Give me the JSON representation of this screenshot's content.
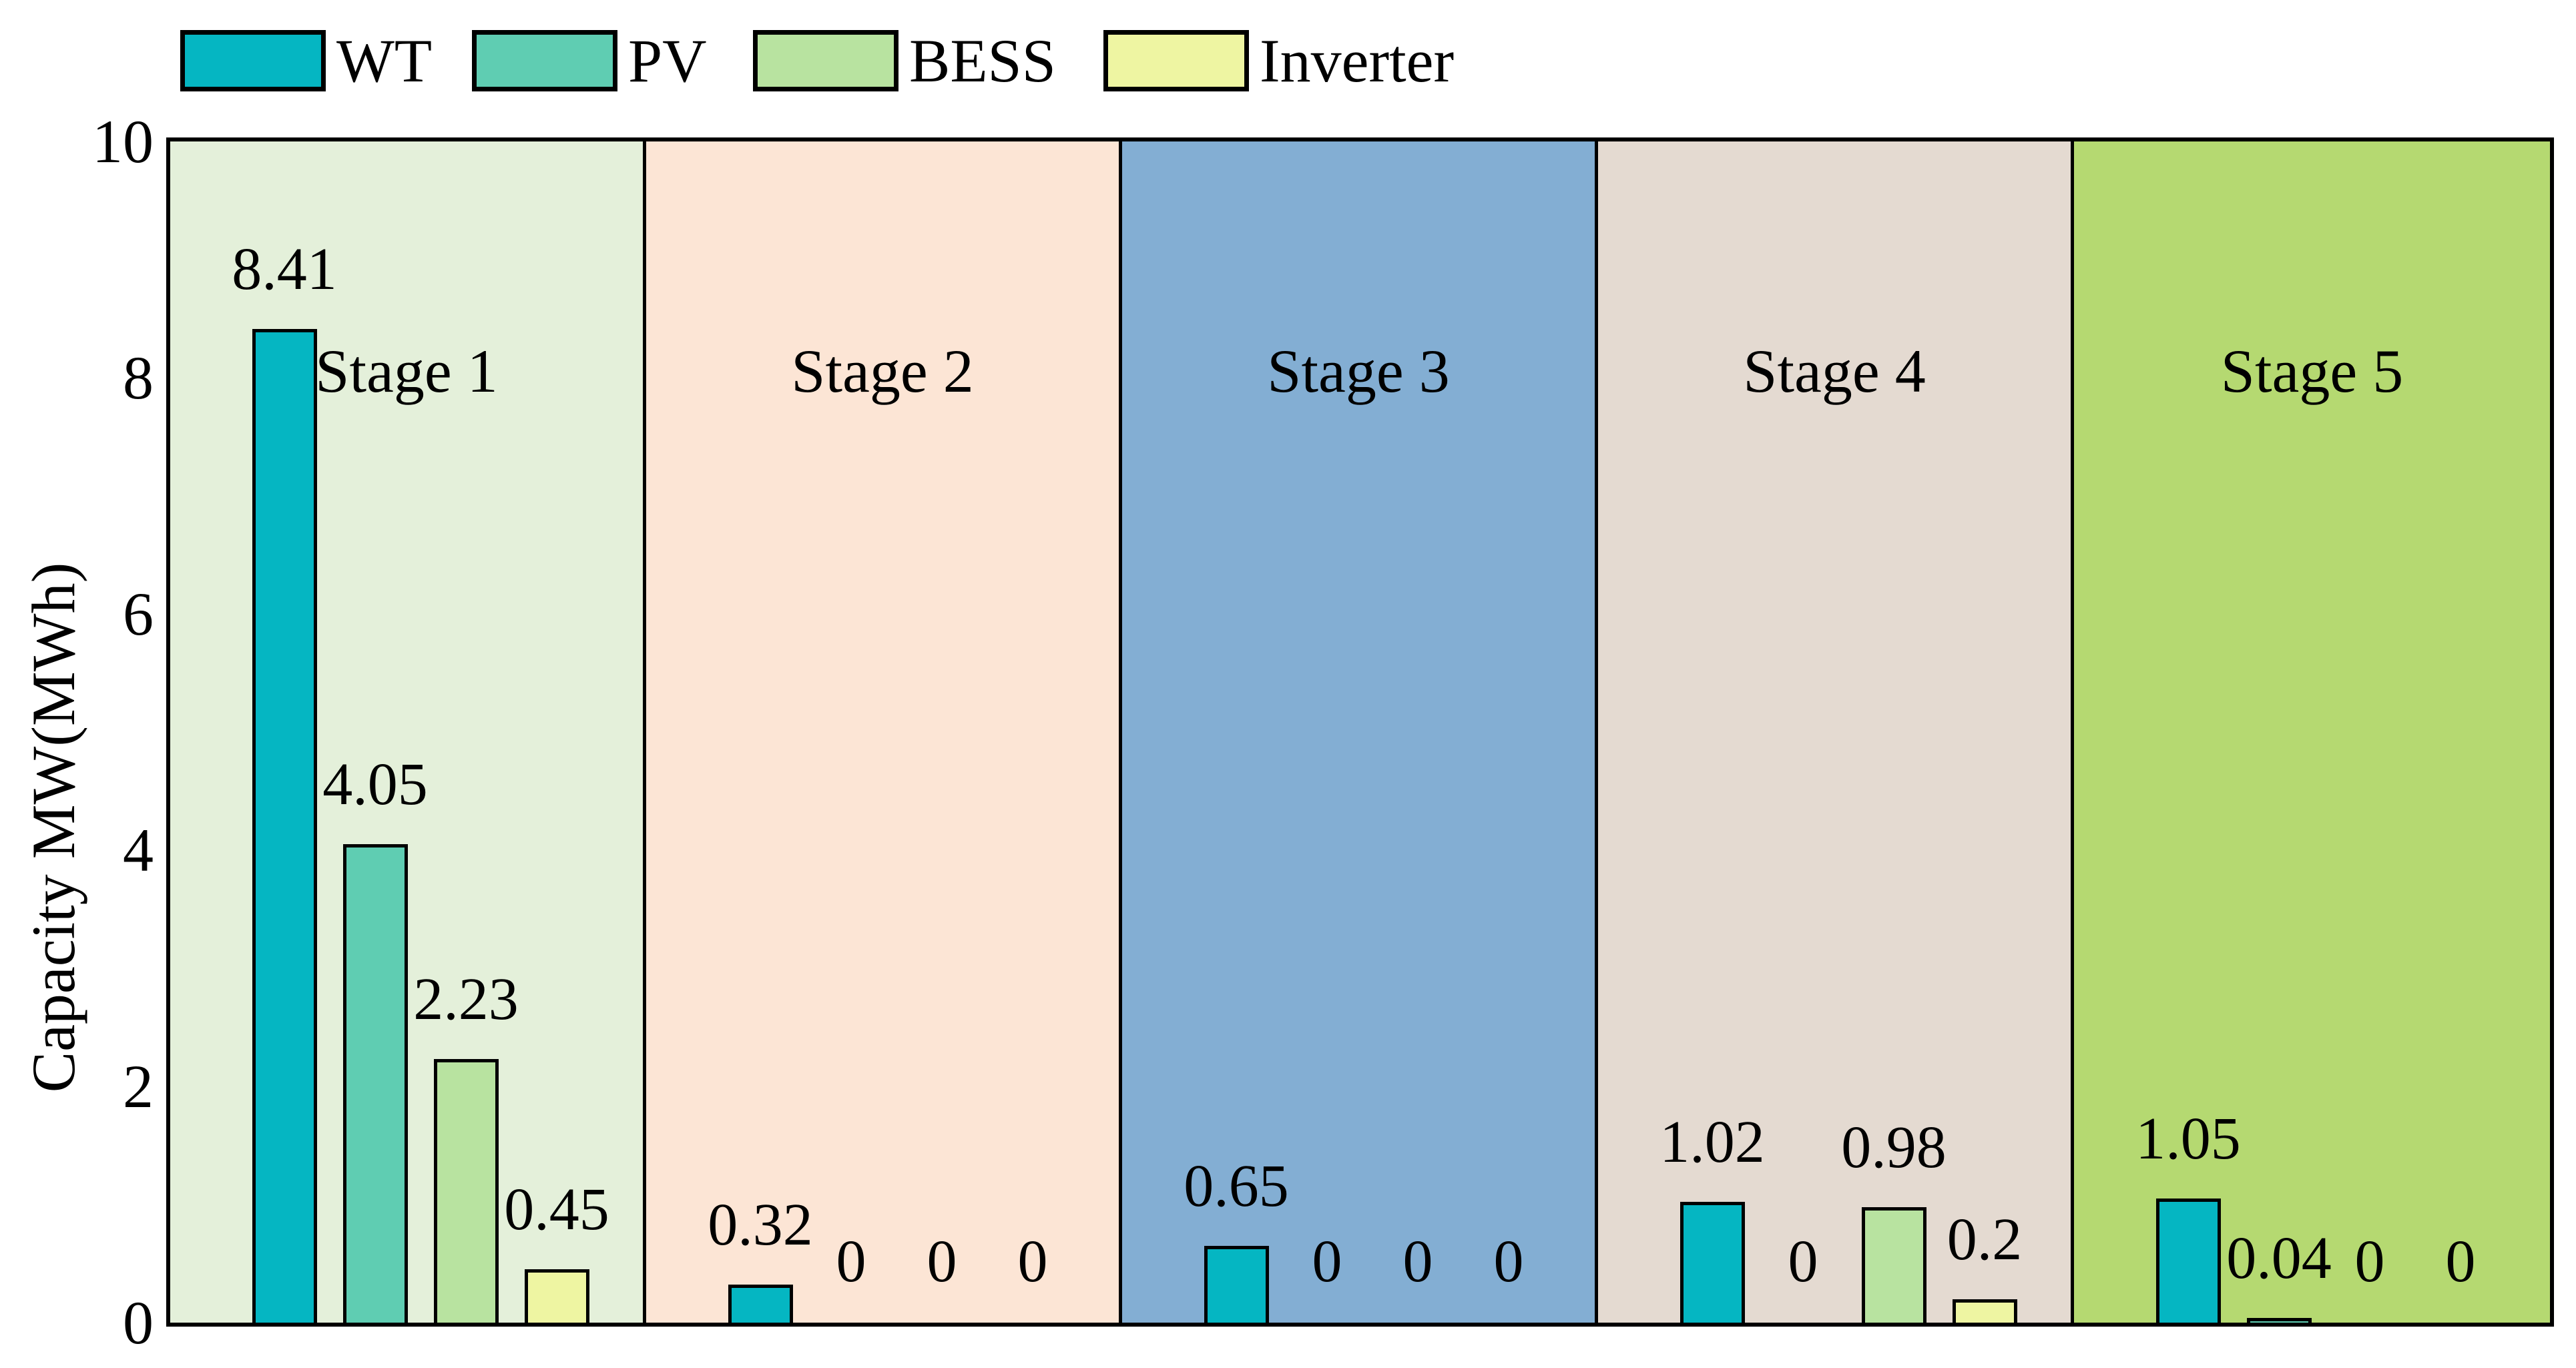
{
  "page": {
    "background": "#ffffff"
  },
  "legend": {
    "position": "top-left",
    "items": [
      {
        "label": "WT",
        "color": "#05b6c2"
      },
      {
        "label": "PV",
        "color": "#5fcdb2"
      },
      {
        "label": "BESS",
        "color": "#b8e3a0"
      },
      {
        "label": "Inverter",
        "color": "#eef5a2"
      }
    ]
  },
  "y_axis": {
    "title": "Capacity MW(MWh)",
    "ticks": [
      "0",
      "2",
      "4",
      "6",
      "8",
      "10"
    ],
    "min": 0,
    "max": 10
  },
  "chart_data": {
    "type": "bar",
    "title": "",
    "xlabel": "",
    "ylabel": "Capacity MW(MWh)",
    "ylim": [
      0,
      10
    ],
    "grid": false,
    "legend_position": "top-left",
    "categories": [
      "Stage 1",
      "Stage 2",
      "Stage 3",
      "Stage 4",
      "Stage 5"
    ],
    "panel_background_colors": [
      "#e4f0da",
      "#fce5d5",
      "#83aed3",
      "#e4dad1",
      "#b5d971"
    ],
    "bar_edge_color": "#000000",
    "series": [
      {
        "name": "WT",
        "color": "#05b6c2",
        "values": [
          8.41,
          0.32,
          0.65,
          1.02,
          1.05
        ]
      },
      {
        "name": "PV",
        "color": "#5fcdb2",
        "values": [
          4.05,
          0,
          0,
          0,
          0.04
        ]
      },
      {
        "name": "BESS",
        "color": "#b8e3a0",
        "values": [
          2.23,
          0,
          0,
          0.98,
          0
        ]
      },
      {
        "name": "Inverter",
        "color": "#eef5a2",
        "values": [
          0.45,
          0,
          0,
          0.2,
          0
        ]
      }
    ],
    "zero_bars_shown_as_text": true
  }
}
